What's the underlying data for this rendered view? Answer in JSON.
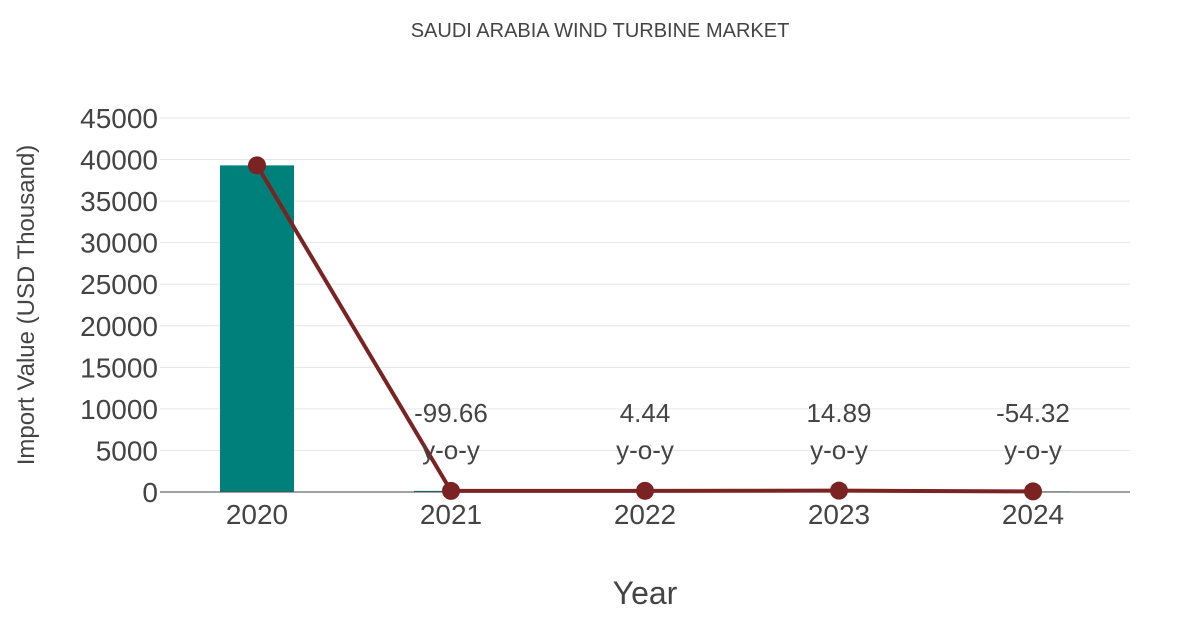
{
  "chart_data": {
    "type": "bar",
    "title": "SAUDI ARABIA WIND TURBINE MARKET",
    "xlabel": "Year",
    "ylabel": "Import Value (USD Thousand)",
    "categories": [
      "2020",
      "2021",
      "2022",
      "2023",
      "2024"
    ],
    "ylim": [
      0,
      45000
    ],
    "yticks": [
      0,
      5000,
      10000,
      15000,
      20000,
      25000,
      30000,
      35000,
      40000,
      45000
    ],
    "grid": true,
    "series": [
      {
        "type": "bar",
        "values": [
          39300,
          135,
          141,
          162,
          74
        ],
        "color": "#00807a"
      },
      {
        "type": "line",
        "values": [
          39300,
          135,
          141,
          162,
          74
        ],
        "color": "#7b2222"
      }
    ],
    "annotations": [
      {
        "category": "2021",
        "value_text": "-99.66",
        "suffix_text": "y-o-y"
      },
      {
        "category": "2022",
        "value_text": "4.44",
        "suffix_text": "y-o-y"
      },
      {
        "category": "2023",
        "value_text": "14.89",
        "suffix_text": "y-o-y"
      },
      {
        "category": "2024",
        "value_text": "-54.32",
        "suffix_text": "y-o-y"
      }
    ]
  }
}
